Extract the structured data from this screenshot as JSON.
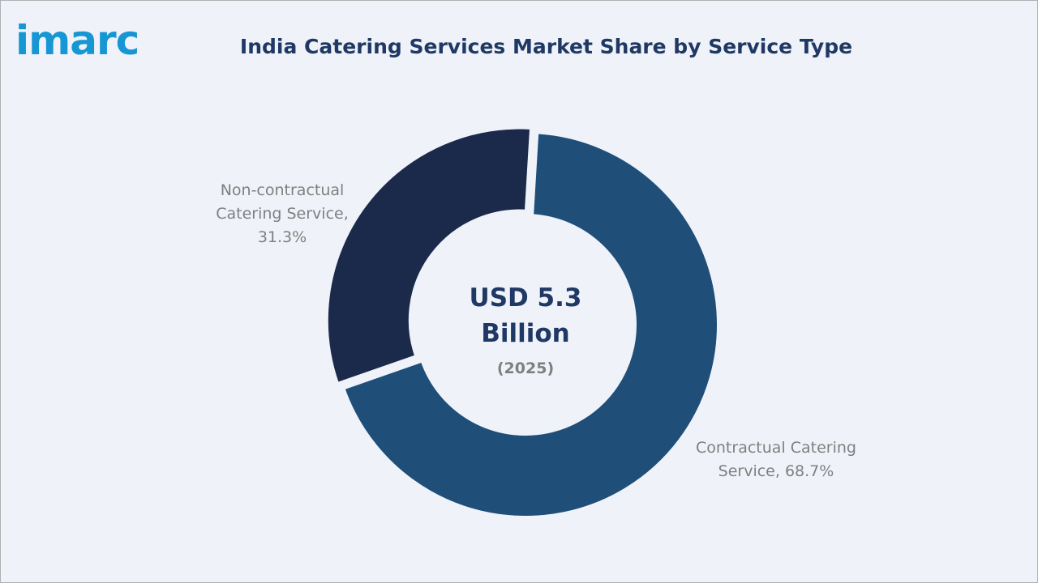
{
  "logo": "imarc",
  "chart_data": {
    "type": "donut",
    "title": "India Catering Services Market Share by Service Type",
    "center_label": "USD 5.3 Billion",
    "center_sublabel": "(2025)",
    "values": [
      68.7,
      31.3
    ],
    "value_labels": [
      "Contractual Catering Service, 68.7%",
      "Non-contractual Catering Service, 31.3%"
    ],
    "colors": [
      "#1f4e79",
      "#1b2a4a"
    ]
  }
}
